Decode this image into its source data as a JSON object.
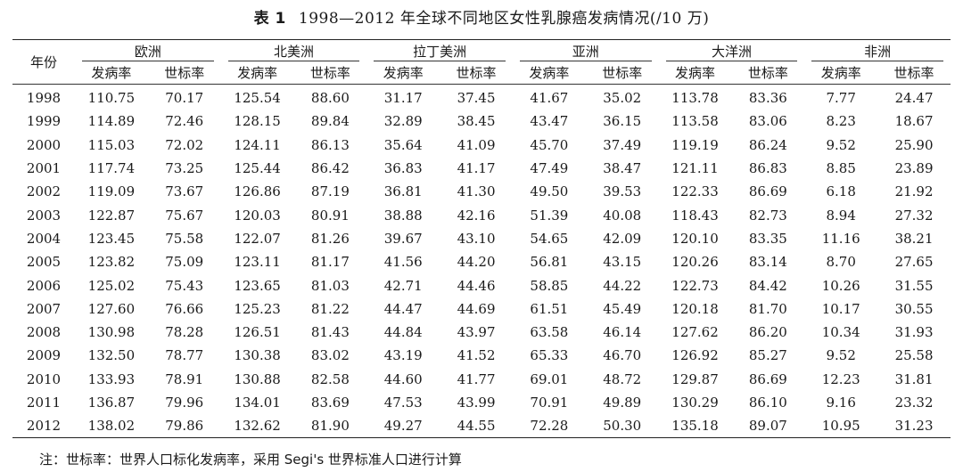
{
  "title": {
    "label": "表 1",
    "text": "1998—2012 年全球不同地区女性乳腺癌发病情况(/10 万)"
  },
  "header": {
    "year": "年份",
    "regions": [
      "欧洲",
      "北美洲",
      "拉丁美洲",
      "亚洲",
      "大洋洲",
      "非洲"
    ],
    "sub": [
      "发病率",
      "世标率"
    ]
  },
  "rows": [
    [
      "1998",
      "110.75",
      "70.17",
      "125.54",
      "88.60",
      "31.17",
      "37.45",
      "41.67",
      "35.02",
      "113.78",
      "83.36",
      "7.77",
      "24.47"
    ],
    [
      "1999",
      "114.89",
      "72.46",
      "128.15",
      "89.84",
      "32.89",
      "38.45",
      "43.47",
      "36.15",
      "113.58",
      "83.06",
      "8.23",
      "18.67"
    ],
    [
      "2000",
      "115.03",
      "72.02",
      "124.11",
      "86.13",
      "35.64",
      "41.09",
      "45.70",
      "37.49",
      "119.19",
      "86.24",
      "9.52",
      "25.90"
    ],
    [
      "2001",
      "117.74",
      "73.25",
      "125.44",
      "86.42",
      "36.83",
      "41.17",
      "47.49",
      "38.47",
      "121.11",
      "86.83",
      "8.85",
      "23.89"
    ],
    [
      "2002",
      "119.09",
      "73.67",
      "126.86",
      "87.19",
      "36.81",
      "41.30",
      "49.50",
      "39.53",
      "122.33",
      "86.69",
      "6.18",
      "21.92"
    ],
    [
      "2003",
      "122.87",
      "75.67",
      "120.03",
      "80.91",
      "38.88",
      "42.16",
      "51.39",
      "40.08",
      "118.43",
      "82.73",
      "8.94",
      "27.32"
    ],
    [
      "2004",
      "123.45",
      "75.58",
      "122.07",
      "81.26",
      "39.67",
      "43.10",
      "54.65",
      "42.09",
      "120.10",
      "83.35",
      "11.16",
      "38.21"
    ],
    [
      "2005",
      "123.82",
      "75.09",
      "123.11",
      "81.17",
      "41.56",
      "44.20",
      "56.81",
      "43.15",
      "120.26",
      "83.14",
      "8.70",
      "27.65"
    ],
    [
      "2006",
      "125.02",
      "75.43",
      "123.65",
      "81.03",
      "42.71",
      "44.46",
      "58.85",
      "44.22",
      "122.73",
      "84.42",
      "10.26",
      "31.55"
    ],
    [
      "2007",
      "127.60",
      "76.66",
      "125.23",
      "81.22",
      "44.47",
      "44.69",
      "61.51",
      "45.49",
      "120.18",
      "81.70",
      "10.17",
      "30.55"
    ],
    [
      "2008",
      "130.98",
      "78.28",
      "126.51",
      "81.43",
      "44.84",
      "43.97",
      "63.58",
      "46.14",
      "127.62",
      "86.20",
      "10.34",
      "31.93"
    ],
    [
      "2009",
      "132.50",
      "78.77",
      "130.38",
      "83.02",
      "43.19",
      "41.52",
      "65.33",
      "46.70",
      "126.92",
      "85.27",
      "9.52",
      "25.58"
    ],
    [
      "2010",
      "133.93",
      "78.91",
      "130.88",
      "82.58",
      "44.60",
      "41.77",
      "69.01",
      "48.72",
      "129.87",
      "86.69",
      "12.23",
      "31.81"
    ],
    [
      "2011",
      "136.87",
      "79.96",
      "134.01",
      "83.69",
      "47.53",
      "43.99",
      "70.91",
      "49.89",
      "130.29",
      "86.10",
      "9.16",
      "23.32"
    ],
    [
      "2012",
      "138.02",
      "79.86",
      "132.62",
      "81.90",
      "49.27",
      "44.55",
      "72.28",
      "50.30",
      "135.18",
      "89.07",
      "10.95",
      "31.23"
    ]
  ],
  "note": "注：世标率：世界人口标化发病率，采用 Segi's 世界标准人口进行计算"
}
